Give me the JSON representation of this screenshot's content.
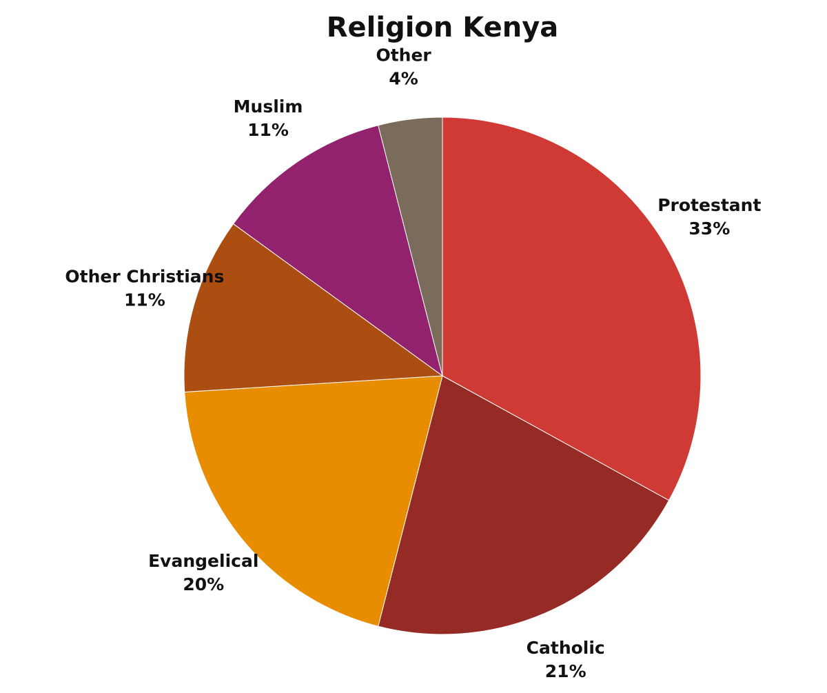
{
  "chart_data": {
    "type": "pie",
    "title": "Religion Kenya",
    "categories": [
      "Protestant",
      "Catholic",
      "Evangelical",
      "Other Christians",
      "Muslim",
      "Other"
    ],
    "values": [
      33,
      21,
      20,
      11,
      11,
      4
    ],
    "value_labels": [
      "33%",
      "21%",
      "20%",
      "11%",
      "11%",
      "4%"
    ],
    "colors": [
      "#d03a35",
      "#962a24",
      "#e88c00",
      "#ac4d12",
      "#92216e",
      "#7b6b5a"
    ]
  }
}
